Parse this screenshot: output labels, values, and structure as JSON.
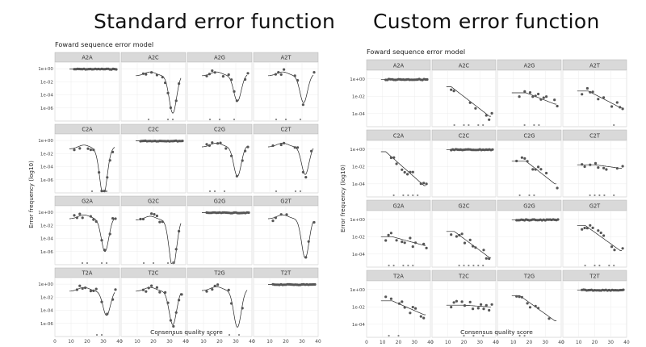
{
  "headings": {
    "left": "Standard error function",
    "right": "Custom error function"
  },
  "chart_data": [
    {
      "type": "scatter",
      "panel_title": "Foward sequence error model",
      "heading": "Standard error function",
      "xlabel": "Consensus quality score",
      "ylabel": "Error frequency (log10)",
      "xlim": [
        0,
        40
      ],
      "ylim_log10": [
        -8,
        1
      ],
      "y_scale": "log10",
      "x_ticks": [
        0,
        10,
        20,
        30,
        40
      ],
      "x_tick_labels": [
        "0",
        "10",
        "20",
        "30",
        "40"
      ],
      "y_ticks_log10": [
        0,
        -2,
        -4,
        -6
      ],
      "y_tick_labels": [
        "1e+00",
        "1e-02",
        "1e-04",
        "1e-06"
      ],
      "grid": true,
      "facets": [
        {
          "label": "A2A",
          "kind": "flat",
          "diag": true
        },
        {
          "label": "A2C",
          "kind": "dip",
          "base": -1.1,
          "dip_x": 32,
          "dip_depth": -6.8
        },
        {
          "label": "A2G",
          "kind": "dip",
          "base": -1.1,
          "dip_x": 31,
          "dip_depth": -5.0
        },
        {
          "label": "A2T",
          "kind": "dip",
          "base": -1.1,
          "dip_x": 31,
          "dip_depth": -5.2
        },
        {
          "label": "C2A",
          "kind": "dip",
          "base": -1.3,
          "dip_x": 30,
          "dip_depth": -8.5
        },
        {
          "label": "C2C",
          "kind": "flat",
          "diag": true
        },
        {
          "label": "C2G",
          "kind": "dip",
          "base": -1.0,
          "dip_x": 31,
          "dip_depth": -5.5
        },
        {
          "label": "C2T",
          "kind": "dip",
          "base": -1.0,
          "dip_x": 32,
          "dip_depth": -5.2
        },
        {
          "label": "G2A",
          "kind": "dip",
          "base": -1.0,
          "dip_x": 31,
          "dip_depth": -6.0
        },
        {
          "label": "G2C",
          "kind": "dip",
          "base": -1.2,
          "dip_x": 32,
          "dip_depth": -8.5
        },
        {
          "label": "G2G",
          "kind": "flat",
          "diag": true
        },
        {
          "label": "G2T",
          "kind": "dip",
          "base": -1.0,
          "dip_x": 32,
          "dip_depth": -7.0
        },
        {
          "label": "T2A",
          "kind": "dip",
          "base": -1.1,
          "dip_x": 32,
          "dip_depth": -4.8
        },
        {
          "label": "T2C",
          "kind": "dip",
          "base": -1.1,
          "dip_x": 32,
          "dip_depth": -6.2
        },
        {
          "label": "T2G",
          "kind": "dip",
          "base": -1.0,
          "dip_x": 31,
          "dip_depth": -6.6
        },
        {
          "label": "T2T",
          "kind": "flat",
          "diag": true
        }
      ]
    },
    {
      "type": "scatter",
      "panel_title": "Foward sequence error model",
      "heading": "Custom error function",
      "xlabel": "Consensus quality score",
      "ylabel": "Error frequency (log10)",
      "xlim": [
        0,
        40
      ],
      "ylim_log10": [
        -5.5,
        1
      ],
      "y_scale": "log10",
      "x_ticks": [
        0,
        10,
        20,
        30,
        40
      ],
      "x_tick_labels": [
        "0",
        "10",
        "20",
        "30",
        "40"
      ],
      "y_ticks_log10": [
        0,
        -2,
        -4
      ],
      "y_tick_labels": [
        "1e+00",
        "1e-02",
        "1e-04"
      ],
      "grid": true,
      "facets": [
        {
          "label": "A2A",
          "kind": "flat",
          "diag": true
        },
        {
          "label": "A2C",
          "kind": "decline",
          "start": -0.9,
          "end": -4.3,
          "bend": 12
        },
        {
          "label": "A2G",
          "kind": "decline",
          "start": -1.6,
          "end": -2.9,
          "bend": 18
        },
        {
          "label": "A2T",
          "kind": "decline",
          "start": -1.4,
          "end": -3.3,
          "bend": 16
        },
        {
          "label": "C2A",
          "kind": "decline",
          "start": -0.3,
          "end": -4.2,
          "bend": 12
        },
        {
          "label": "C2C",
          "kind": "flat",
          "diag": true
        },
        {
          "label": "C2G",
          "kind": "decline",
          "start": -1.4,
          "end": -4.0,
          "bend": 18
        },
        {
          "label": "C2T",
          "kind": "decline",
          "start": -1.8,
          "end": -2.2,
          "bend": 20
        },
        {
          "label": "G2A",
          "kind": "decline",
          "start": -2.0,
          "end": -3.0,
          "bend": 16
        },
        {
          "label": "G2C",
          "kind": "decline",
          "start": -1.4,
          "end": -4.4,
          "bend": 14
        },
        {
          "label": "G2G",
          "kind": "flat",
          "diag": true
        },
        {
          "label": "G2T",
          "kind": "decline",
          "start": -0.7,
          "end": -3.6,
          "bend": 14
        },
        {
          "label": "T2A",
          "kind": "decline",
          "start": -1.3,
          "end": -2.9,
          "bend": 16
        },
        {
          "label": "T2C",
          "kind": "decline",
          "start": -1.8,
          "end": -2.0,
          "bend": 20
        },
        {
          "label": "T2G",
          "kind": "decline",
          "start": -0.7,
          "end": -3.6,
          "bend": 14
        },
        {
          "label": "T2T",
          "kind": "flat",
          "diag": true
        }
      ]
    }
  ]
}
